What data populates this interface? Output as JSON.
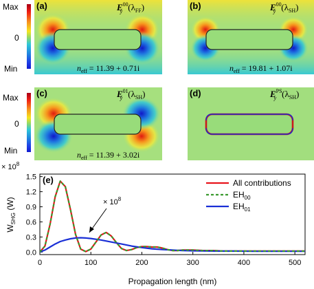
{
  "colorbar": {
    "max": "Max",
    "zero": "0",
    "min": "Min"
  },
  "panels": [
    {
      "letter": "(a)",
      "field": "E",
      "sup": "00",
      "sub": "y",
      "wl": "(λ",
      "wlsub": "FF",
      "close": ")",
      "neff": "n",
      "neffsub": "eff",
      "neffval": " = 11.39 + 0.71i"
    },
    {
      "letter": "(b)",
      "field": "E",
      "sup": "00",
      "sub": "y",
      "wl": "(λ",
      "wlsub": "SH",
      "close": ")",
      "neff": "n",
      "neffsub": "eff",
      "neffval": " = 19.81 + 1.07i"
    },
    {
      "letter": "(c)",
      "field": "E",
      "sup": "01",
      "sub": "y",
      "wl": "(λ",
      "wlsub": "SH",
      "close": ")",
      "neff": "n",
      "neffsub": "eff",
      "neffval": " = 11.39 + 3.02i"
    },
    {
      "letter": "(d)",
      "field": "E",
      "sup": "PS",
      "sub": "y",
      "wl": "(λ",
      "wlsub": "SH",
      "close": ")",
      "neff": "",
      "neffsub": "",
      "neffval": ""
    }
  ],
  "chart_data": {
    "type": "line",
    "panel_label": "(e)",
    "xlabel": "Propagation length (nm)",
    "ylabel": "W",
    "ylabel_sub": "SHG",
    "ylabel_unit": " (W)",
    "y_multiplier": "× 10",
    "y_multiplier_exp": "8",
    "annotation": "× 10",
    "annotation_exp": "8",
    "xlim": [
      0,
      520
    ],
    "ylim": [
      -0.05,
      1.55
    ],
    "xticks": [
      "0",
      "100",
      "200",
      "300",
      "400",
      "500"
    ],
    "xtick_values": [
      0,
      100,
      200,
      300,
      400,
      500
    ],
    "yticks": [
      "0.0",
      "0.3",
      "0.6",
      "0.9",
      "1.2",
      "1.5"
    ],
    "ytick_values": [
      0.0,
      0.3,
      0.6,
      0.9,
      1.2,
      1.5
    ],
    "legend_position": "top-right",
    "series": [
      {
        "name": "All contributions",
        "color": "#e8141c",
        "style": "solid",
        "x": [
          0,
          10,
          20,
          30,
          40,
          50,
          60,
          70,
          80,
          90,
          100,
          110,
          120,
          130,
          140,
          150,
          160,
          170,
          180,
          190,
          200,
          210,
          220,
          230,
          240,
          250,
          260,
          270,
          280,
          300,
          320,
          340,
          360,
          380,
          400,
          450,
          500,
          520
        ],
        "values": [
          0.0,
          0.12,
          0.55,
          1.1,
          1.41,
          1.3,
          0.85,
          0.35,
          0.06,
          0.01,
          0.06,
          0.2,
          0.34,
          0.39,
          0.32,
          0.19,
          0.07,
          0.03,
          0.05,
          0.09,
          0.11,
          0.11,
          0.1,
          0.1,
          0.08,
          0.05,
          0.03,
          0.03,
          0.04,
          0.04,
          0.03,
          0.03,
          0.02,
          0.02,
          0.02,
          0.02,
          0.02,
          0.02
        ]
      },
      {
        "name": "EH",
        "name_sub": "00",
        "color": "#3a9a2e",
        "style": "dashed",
        "x": [
          0,
          10,
          20,
          30,
          40,
          50,
          60,
          70,
          80,
          90,
          100,
          110,
          120,
          130,
          140,
          150,
          160,
          170,
          180,
          190,
          200,
          210,
          220,
          230,
          240,
          250,
          260,
          270,
          280,
          300,
          320,
          340,
          360,
          380,
          400,
          450,
          500,
          520
        ],
        "values": [
          0.0,
          0.12,
          0.55,
          1.1,
          1.41,
          1.3,
          0.85,
          0.35,
          0.06,
          0.01,
          0.06,
          0.2,
          0.34,
          0.39,
          0.32,
          0.19,
          0.07,
          0.03,
          0.05,
          0.09,
          0.11,
          0.11,
          0.1,
          0.1,
          0.08,
          0.05,
          0.03,
          0.03,
          0.04,
          0.04,
          0.03,
          0.03,
          0.02,
          0.02,
          0.02,
          0.02,
          0.02,
          0.02
        ]
      },
      {
        "name": "EH",
        "name_sub": "01",
        "color": "#1a2fd6",
        "style": "solid",
        "x": [
          0,
          10,
          20,
          30,
          40,
          50,
          60,
          70,
          80,
          90,
          100,
          120,
          140,
          160,
          180,
          200,
          220,
          240,
          260,
          280,
          300,
          340,
          380,
          420,
          460,
          500,
          520
        ],
        "values": [
          0.0,
          0.04,
          0.1,
          0.16,
          0.21,
          0.24,
          0.265,
          0.28,
          0.285,
          0.28,
          0.27,
          0.24,
          0.2,
          0.16,
          0.12,
          0.09,
          0.065,
          0.05,
          0.04,
          0.03,
          0.025,
          0.02,
          0.02,
          0.015,
          0.015,
          0.015,
          0.015
        ]
      }
    ]
  }
}
